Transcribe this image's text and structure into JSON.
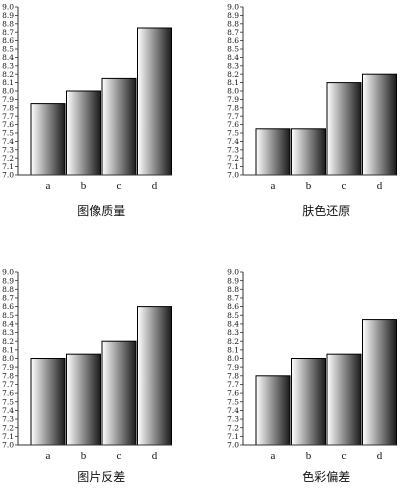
{
  "chart_data": [
    {
      "type": "bar",
      "title": "图像质量",
      "categories": [
        "a",
        "b",
        "c",
        "d"
      ],
      "values": [
        7.85,
        8.0,
        8.15,
        8.75
      ],
      "ylim": [
        7.0,
        9.0
      ],
      "yticks": [
        "7.0",
        "7.1",
        "7.2",
        "7.3",
        "7.4",
        "7.5",
        "7.6",
        "7.7",
        "7.8",
        "7.9",
        "8.0",
        "8.1",
        "8.2",
        "8.3",
        "8.4",
        "8.5",
        "8.6",
        "8.7",
        "8.8",
        "8.9",
        "9.0"
      ],
      "grid": false
    },
    {
      "type": "bar",
      "title": "肤色还原",
      "categories": [
        "a",
        "b",
        "c",
        "d"
      ],
      "values": [
        7.55,
        7.55,
        8.1,
        8.2
      ],
      "ylim": [
        7.0,
        9.0
      ],
      "yticks": [
        "7.0",
        "7.1",
        "7.2",
        "7.3",
        "7.4",
        "7.5",
        "7.6",
        "7.7",
        "7.8",
        "7.9",
        "8.0",
        "8.1",
        "8.2",
        "8.3",
        "8.4",
        "8.5",
        "8.6",
        "8.7",
        "8.8",
        "8.9",
        "9.0"
      ],
      "grid": false
    },
    {
      "type": "bar",
      "title": "图片反差",
      "categories": [
        "a",
        "b",
        "c",
        "d"
      ],
      "values": [
        8.0,
        8.05,
        8.2,
        8.6
      ],
      "ylim": [
        7.0,
        9.0
      ],
      "yticks": [
        "7.0",
        "7.1",
        "7.2",
        "7.3",
        "7.4",
        "7.5",
        "7.6",
        "7.7",
        "7.8",
        "7.9",
        "8.0",
        "8.1",
        "8.2",
        "8.3",
        "8.4",
        "8.5",
        "8.6",
        "8.7",
        "8.8",
        "8.9",
        "9.0"
      ],
      "grid": false
    },
    {
      "type": "bar",
      "title": "色彩偏差",
      "categories": [
        "a",
        "b",
        "c",
        "d"
      ],
      "values": [
        7.8,
        8.0,
        8.05,
        8.45
      ],
      "ylim": [
        7.0,
        9.0
      ],
      "yticks": [
        "7.0",
        "7.1",
        "7.2",
        "7.3",
        "7.4",
        "7.5",
        "7.6",
        "7.7",
        "7.8",
        "7.9",
        "8.0",
        "8.1",
        "8.2",
        "8.3",
        "8.4",
        "8.5",
        "8.6",
        "8.7",
        "8.8",
        "8.9",
        "9.0"
      ],
      "grid": false
    }
  ],
  "colors": {
    "bar_light": "#ffffff",
    "bar_dark": "#1a1a1a",
    "axis": "#333333"
  }
}
